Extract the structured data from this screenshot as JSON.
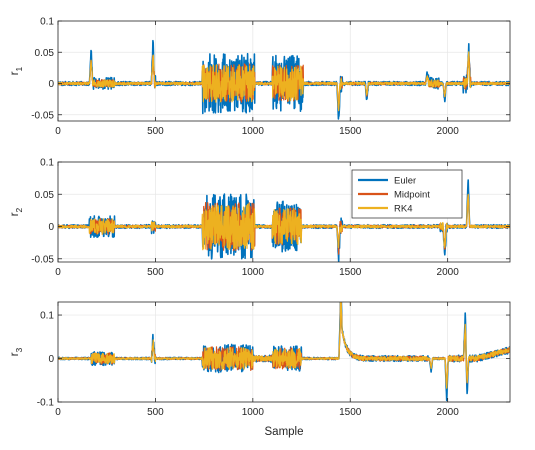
{
  "chart_data": [
    {
      "type": "line",
      "ylabel": "r",
      "ylabel_sub": "1",
      "xlim": [
        0,
        2320
      ],
      "ylim": [
        -0.06,
        0.1
      ],
      "x_ticks": [
        0,
        500,
        1000,
        1500,
        2000
      ],
      "y_ticks": [
        -0.05,
        0,
        0.05,
        0.1
      ],
      "y_tick_labels": [
        "-0.05",
        "0",
        "0.05",
        "0.1"
      ],
      "grid": true,
      "active_segments": [
        {
          "x": [
            170,
            290
          ],
          "amp": 0.006
        },
        {
          "x": [
            480,
            500
          ],
          "amp": 0.008
        },
        {
          "x": [
            740,
            1010
          ],
          "amp": 0.03
        },
        {
          "x": [
            1100,
            1260
          ],
          "amp": 0.028
        },
        {
          "x": [
            1440,
            1460
          ],
          "amp": 0.01
        },
        {
          "x": [
            1900,
            1960
          ],
          "amp": 0.006
        },
        {
          "x": [
            2080,
            2120
          ],
          "amp": 0.01
        }
      ],
      "spikes": [
        {
          "x": 170,
          "y": 0.054
        },
        {
          "x": 488,
          "y": 0.068
        },
        {
          "x": 1440,
          "y": -0.06
        },
        {
          "x": 1585,
          "y": -0.028
        },
        {
          "x": 1985,
          "y": -0.03
        },
        {
          "x": 2108,
          "y": 0.068
        },
        {
          "x": 1895,
          "y": 0.018
        }
      ],
      "series": [
        {
          "name": "Euler",
          "color": "#0072BD",
          "scale": 1.6
        },
        {
          "name": "Midpoint",
          "color": "#D95319",
          "scale": 1.05
        },
        {
          "name": "RK4",
          "color": "#EDB120",
          "scale": 1.0
        }
      ]
    },
    {
      "type": "line",
      "ylabel": "r",
      "ylabel_sub": "2",
      "xlim": [
        0,
        2320
      ],
      "ylim": [
        -0.055,
        0.1
      ],
      "x_ticks": [
        0,
        500,
        1000,
        1500,
        2000
      ],
      "y_ticks": [
        -0.05,
        0,
        0.05,
        0.1
      ],
      "y_tick_labels": [
        "-0.05",
        "0",
        "0.05",
        "0.1"
      ],
      "grid": true,
      "legend": {
        "placement": "top-right",
        "entries": [
          {
            "name": "Euler",
            "color": "#0072BD"
          },
          {
            "name": "Midpoint",
            "color": "#D95319"
          },
          {
            "name": "RK4",
            "color": "#EDB120"
          }
        ]
      },
      "active_segments": [
        {
          "x": [
            160,
            290
          ],
          "amp": 0.012
        },
        {
          "x": [
            480,
            500
          ],
          "amp": 0.008
        },
        {
          "x": [
            740,
            1010
          ],
          "amp": 0.036
        },
        {
          "x": [
            1100,
            1250
          ],
          "amp": 0.028
        },
        {
          "x": [
            1440,
            1460
          ],
          "amp": 0.01
        },
        {
          "x": [
            1960,
            2000
          ],
          "amp": 0.006
        }
      ],
      "spikes": [
        {
          "x": 1440,
          "y": -0.05
        },
        {
          "x": 1985,
          "y": -0.05
        },
        {
          "x": 2105,
          "y": 0.075
        }
      ],
      "series": [
        {
          "name": "Euler",
          "color": "#0072BD",
          "scale": 1.4
        },
        {
          "name": "Midpoint",
          "color": "#D95319",
          "scale": 1.05
        },
        {
          "name": "RK4",
          "color": "#EDB120",
          "scale": 1.0
        }
      ]
    },
    {
      "type": "line",
      "ylabel": "r",
      "ylabel_sub": "3",
      "xlabel": "Sample",
      "xlim": [
        0,
        2320
      ],
      "ylim": [
        -0.1,
        0.13
      ],
      "x_ticks": [
        0,
        500,
        1000,
        1500,
        2000
      ],
      "y_ticks": [
        -0.1,
        0,
        0.1
      ],
      "y_tick_labels": [
        "-0.1",
        "0",
        "0.1"
      ],
      "grid": true,
      "active_segments": [
        {
          "x": [
            170,
            290
          ],
          "amp": 0.012
        },
        {
          "x": [
            480,
            500
          ],
          "amp": 0.01
        },
        {
          "x": [
            740,
            1000
          ],
          "amp": 0.025
        },
        {
          "x": [
            1000,
            1100
          ],
          "amp": 0.006
        },
        {
          "x": [
            1100,
            1250
          ],
          "amp": 0.022
        },
        {
          "x": [
            1450,
            1900
          ],
          "amp": 0.005
        },
        {
          "x": [
            2000,
            2320
          ],
          "amp": 0.006
        }
      ],
      "spikes": [
        {
          "x": 488,
          "y": 0.05
        },
        {
          "x": 1450,
          "y": 0.125
        },
        {
          "x": 1915,
          "y": -0.03
        },
        {
          "x": 1995,
          "y": -0.095
        },
        {
          "x": 2090,
          "y": 0.105
        },
        {
          "x": 2100,
          "y": -0.08
        }
      ],
      "series": [
        {
          "name": "Euler",
          "color": "#0072BD",
          "scale": 1.3
        },
        {
          "name": "Midpoint",
          "color": "#D95319",
          "scale": 1.1
        },
        {
          "name": "RK4",
          "color": "#EDB120",
          "scale": 1.0
        }
      ]
    }
  ]
}
